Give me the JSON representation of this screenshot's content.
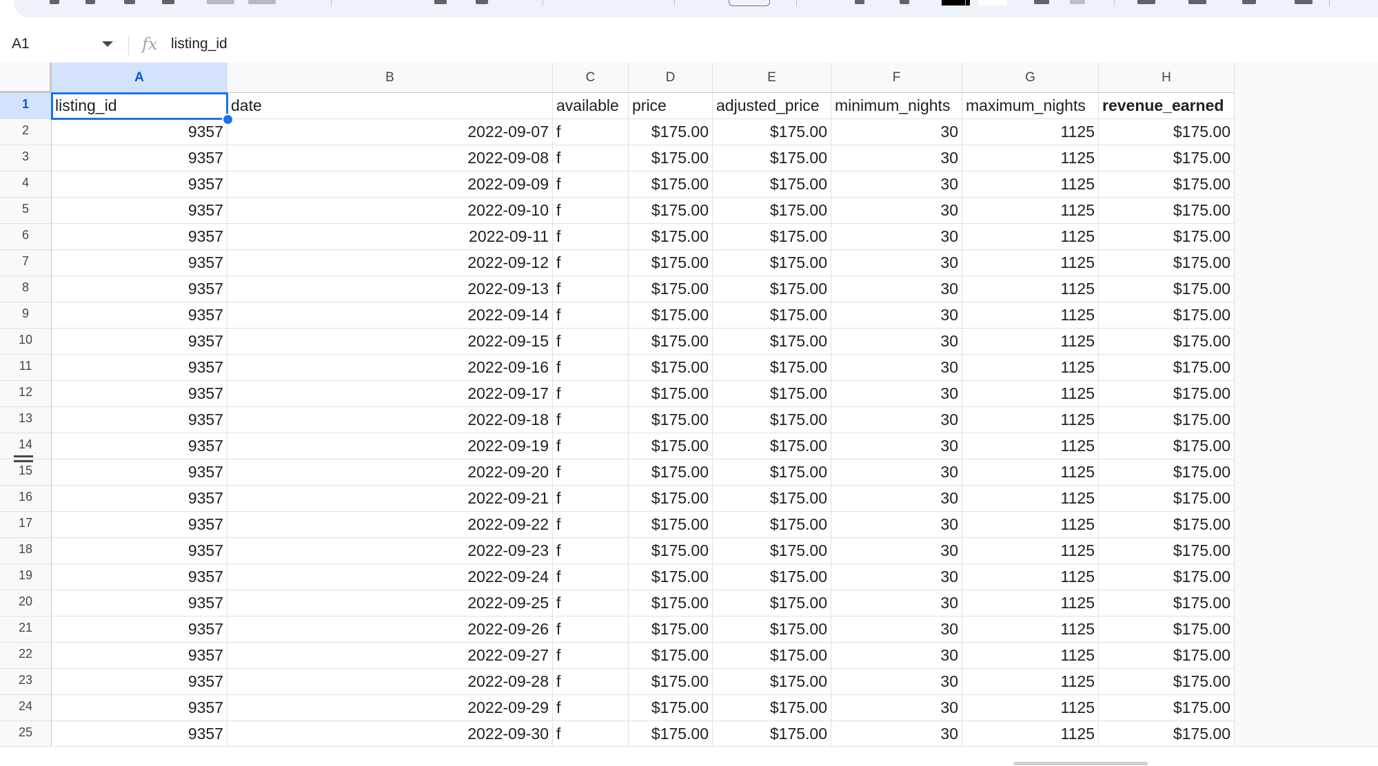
{
  "formula_bar": {
    "name_box": "A1",
    "fx_label": "fx",
    "content": "listing_id"
  },
  "columns": [
    "A",
    "B",
    "C",
    "D",
    "E",
    "F",
    "G",
    "H"
  ],
  "selected_cell": "A1",
  "header_row": {
    "row_number": "1",
    "cells": [
      "listing_id",
      "date",
      "available",
      "price",
      "adjusted_price",
      "minimum_nights",
      "maximum_nights",
      "revenue_earned"
    ]
  },
  "rows": [
    {
      "n": "2",
      "cells": [
        "9357",
        "2022-09-07",
        "f",
        "$175.00",
        "$175.00",
        "30",
        "1125",
        "$175.00"
      ]
    },
    {
      "n": "3",
      "cells": [
        "9357",
        "2022-09-08",
        "f",
        "$175.00",
        "$175.00",
        "30",
        "1125",
        "$175.00"
      ]
    },
    {
      "n": "4",
      "cells": [
        "9357",
        "2022-09-09",
        "f",
        "$175.00",
        "$175.00",
        "30",
        "1125",
        "$175.00"
      ]
    },
    {
      "n": "5",
      "cells": [
        "9357",
        "2022-09-10",
        "f",
        "$175.00",
        "$175.00",
        "30",
        "1125",
        "$175.00"
      ]
    },
    {
      "n": "6",
      "cells": [
        "9357",
        "2022-09-11",
        "f",
        "$175.00",
        "$175.00",
        "30",
        "1125",
        "$175.00"
      ]
    },
    {
      "n": "7",
      "cells": [
        "9357",
        "2022-09-12",
        "f",
        "$175.00",
        "$175.00",
        "30",
        "1125",
        "$175.00"
      ]
    },
    {
      "n": "8",
      "cells": [
        "9357",
        "2022-09-13",
        "f",
        "$175.00",
        "$175.00",
        "30",
        "1125",
        "$175.00"
      ]
    },
    {
      "n": "9",
      "cells": [
        "9357",
        "2022-09-14",
        "f",
        "$175.00",
        "$175.00",
        "30",
        "1125",
        "$175.00"
      ]
    },
    {
      "n": "10",
      "cells": [
        "9357",
        "2022-09-15",
        "f",
        "$175.00",
        "$175.00",
        "30",
        "1125",
        "$175.00"
      ]
    },
    {
      "n": "11",
      "cells": [
        "9357",
        "2022-09-16",
        "f",
        "$175.00",
        "$175.00",
        "30",
        "1125",
        "$175.00"
      ]
    },
    {
      "n": "12",
      "cells": [
        "9357",
        "2022-09-17",
        "f",
        "$175.00",
        "$175.00",
        "30",
        "1125",
        "$175.00"
      ]
    },
    {
      "n": "13",
      "cells": [
        "9357",
        "2022-09-18",
        "f",
        "$175.00",
        "$175.00",
        "30",
        "1125",
        "$175.00"
      ]
    },
    {
      "n": "14",
      "cells": [
        "9357",
        "2022-09-19",
        "f",
        "$175.00",
        "$175.00",
        "30",
        "1125",
        "$175.00"
      ]
    },
    {
      "n": "15",
      "cells": [
        "9357",
        "2022-09-20",
        "f",
        "$175.00",
        "$175.00",
        "30",
        "1125",
        "$175.00"
      ]
    },
    {
      "n": "16",
      "cells": [
        "9357",
        "2022-09-21",
        "f",
        "$175.00",
        "$175.00",
        "30",
        "1125",
        "$175.00"
      ]
    },
    {
      "n": "17",
      "cells": [
        "9357",
        "2022-09-22",
        "f",
        "$175.00",
        "$175.00",
        "30",
        "1125",
        "$175.00"
      ]
    },
    {
      "n": "18",
      "cells": [
        "9357",
        "2022-09-23",
        "f",
        "$175.00",
        "$175.00",
        "30",
        "1125",
        "$175.00"
      ]
    },
    {
      "n": "19",
      "cells": [
        "9357",
        "2022-09-24",
        "f",
        "$175.00",
        "$175.00",
        "30",
        "1125",
        "$175.00"
      ]
    },
    {
      "n": "20",
      "cells": [
        "9357",
        "2022-09-25",
        "f",
        "$175.00",
        "$175.00",
        "30",
        "1125",
        "$175.00"
      ]
    },
    {
      "n": "21",
      "cells": [
        "9357",
        "2022-09-26",
        "f",
        "$175.00",
        "$175.00",
        "30",
        "1125",
        "$175.00"
      ]
    },
    {
      "n": "22",
      "cells": [
        "9357",
        "2022-09-27",
        "f",
        "$175.00",
        "$175.00",
        "30",
        "1125",
        "$175.00"
      ]
    },
    {
      "n": "23",
      "cells": [
        "9357",
        "2022-09-28",
        "f",
        "$175.00",
        "$175.00",
        "30",
        "1125",
        "$175.00"
      ]
    },
    {
      "n": "24",
      "cells": [
        "9357",
        "2022-09-29",
        "f",
        "$175.00",
        "$175.00",
        "30",
        "1125",
        "$175.00"
      ]
    },
    {
      "n": "25",
      "cells": [
        "9357",
        "2022-09-30",
        "f",
        "$175.00",
        "$175.00",
        "30",
        "1125",
        "$175.00"
      ]
    }
  ],
  "colors": {
    "selection": "#1a73e8",
    "selected_header_bg": "#d3e3fd",
    "toolbar_bg": "#eef2f9"
  }
}
